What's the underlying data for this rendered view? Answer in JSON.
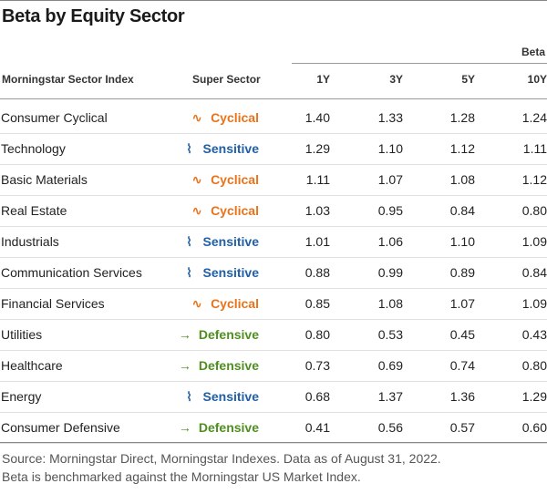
{
  "title": "Beta by Equity Sector",
  "header": {
    "group_label": "Beta",
    "col_sector": "Morningstar Sector Index",
    "col_super": "Super Sector",
    "periods": [
      "1Y",
      "3Y",
      "5Y",
      "10Y"
    ]
  },
  "colors": {
    "Cyclical": "#e8731a",
    "Sensitive": "#1f5fa8",
    "Defensive": "#4e8f1f"
  },
  "icons": {
    "Cyclical": "cyclical-wave-icon",
    "Sensitive": "sensitive-zigzag-icon",
    "Defensive": "defensive-arrow-icon"
  },
  "rows": [
    {
      "sector": "Consumer Cyclical",
      "super": "Cyclical",
      "y1": "1.40",
      "y3": "1.33",
      "y5": "1.28",
      "y10": "1.24"
    },
    {
      "sector": "Technology",
      "super": "Sensitive",
      "y1": "1.29",
      "y3": "1.10",
      "y5": "1.12",
      "y10": "1.11"
    },
    {
      "sector": "Basic Materials",
      "super": "Cyclical",
      "y1": "1.11",
      "y3": "1.07",
      "y5": "1.08",
      "y10": "1.12"
    },
    {
      "sector": "Real Estate",
      "super": "Cyclical",
      "y1": "1.03",
      "y3": "0.95",
      "y5": "0.84",
      "y10": "0.80"
    },
    {
      "sector": "Industrials",
      "super": "Sensitive",
      "y1": "1.01",
      "y3": "1.06",
      "y5": "1.10",
      "y10": "1.09"
    },
    {
      "sector": "Communication Services",
      "super": "Sensitive",
      "y1": "0.88",
      "y3": "0.99",
      "y5": "0.89",
      "y10": "0.84"
    },
    {
      "sector": "Financial Services",
      "super": "Cyclical",
      "y1": "0.85",
      "y3": "1.08",
      "y5": "1.07",
      "y10": "1.09"
    },
    {
      "sector": "Utilities",
      "super": "Defensive",
      "y1": "0.80",
      "y3": "0.53",
      "y5": "0.45",
      "y10": "0.43"
    },
    {
      "sector": "Healthcare",
      "super": "Defensive",
      "y1": "0.73",
      "y3": "0.69",
      "y5": "0.74",
      "y10": "0.80"
    },
    {
      "sector": "Energy",
      "super": "Sensitive",
      "y1": "0.68",
      "y3": "1.37",
      "y5": "1.36",
      "y10": "1.29"
    },
    {
      "sector": "Consumer Defensive",
      "super": "Defensive",
      "y1": "0.41",
      "y3": "0.56",
      "y5": "0.57",
      "y10": "0.60"
    }
  ],
  "source": [
    "Source: Morningstar Direct, Morningstar Indexes. Data as of August 31, 2022.",
    "Beta is benchmarked against the Morningstar US Market Index."
  ]
}
